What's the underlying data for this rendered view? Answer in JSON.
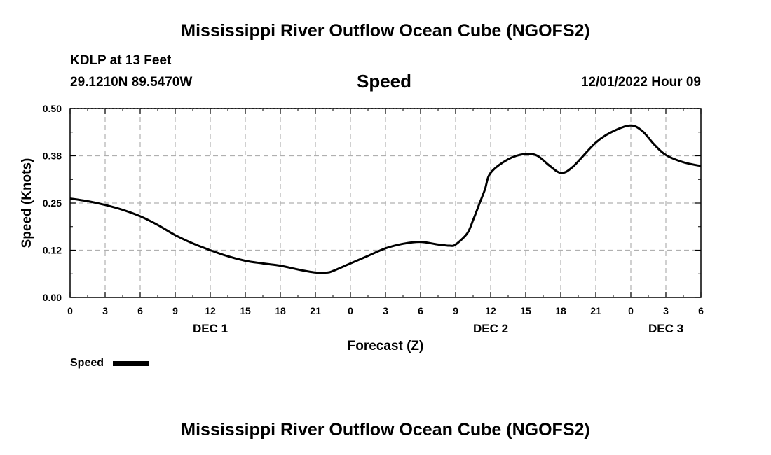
{
  "page": {
    "title_top": "Mississippi River Outflow Ocean Cube (NGOFS2)",
    "station": "KDLP at 13 Feet",
    "coords": "29.1210N  89.5470W",
    "variable": "Speed",
    "datetime": "12/01/2022 Hour 09",
    "title_bottom": "Mississippi River Outflow Ocean Cube (NGOFS2)",
    "legend_label": "Speed"
  },
  "colors": {
    "line": "#000000",
    "grid": "#b0b0b0",
    "background": "#ffffff"
  },
  "chart_data": {
    "type": "line",
    "title": "Speed",
    "xlabel": "Forecast (Z)",
    "ylabel": "Speed (Knots)",
    "xlim": [
      0,
      54
    ],
    "ylim": [
      0,
      0.5
    ],
    "yticks": [
      {
        "value": 0.0,
        "label": "0.00"
      },
      {
        "value": 0.125,
        "label": "0.12"
      },
      {
        "value": 0.25,
        "label": "0.25"
      },
      {
        "value": 0.375,
        "label": "0.38"
      },
      {
        "value": 0.5,
        "label": "0.50"
      }
    ],
    "xticks": [
      {
        "value": 0,
        "label": "0"
      },
      {
        "value": 3,
        "label": "3"
      },
      {
        "value": 6,
        "label": "6"
      },
      {
        "value": 9,
        "label": "9"
      },
      {
        "value": 12,
        "label": "12"
      },
      {
        "value": 15,
        "label": "15"
      },
      {
        "value": 18,
        "label": "18"
      },
      {
        "value": 21,
        "label": "21"
      },
      {
        "value": 24,
        "label": "0"
      },
      {
        "value": 27,
        "label": "3"
      },
      {
        "value": 30,
        "label": "6"
      },
      {
        "value": 33,
        "label": "9"
      },
      {
        "value": 36,
        "label": "12"
      },
      {
        "value": 39,
        "label": "15"
      },
      {
        "value": 42,
        "label": "18"
      },
      {
        "value": 45,
        "label": "21"
      },
      {
        "value": 48,
        "label": "0"
      },
      {
        "value": 51,
        "label": "3"
      },
      {
        "value": 54,
        "label": "6"
      }
    ],
    "day_labels": [
      {
        "value": 12,
        "label": "DEC 1"
      },
      {
        "value": 36,
        "label": "DEC 2"
      },
      {
        "value": 51,
        "label": "DEC 3"
      }
    ],
    "series": [
      {
        "name": "Speed",
        "x": [
          0,
          1.5,
          3,
          4.5,
          6,
          7.5,
          9,
          10.5,
          12,
          13.5,
          15,
          16.5,
          18,
          19.5,
          21,
          22,
          22.5,
          24,
          25.5,
          27,
          28.5,
          30,
          31.5,
          32.5,
          33,
          34,
          34.5,
          35,
          35.5,
          36,
          37.5,
          39,
          40,
          41,
          42,
          43,
          45,
          46.5,
          48,
          49,
          50,
          51,
          52.5,
          54
        ],
        "y": [
          0.262,
          0.255,
          0.245,
          0.232,
          0.215,
          0.192,
          0.165,
          0.143,
          0.125,
          0.109,
          0.097,
          0.09,
          0.084,
          0.074,
          0.066,
          0.066,
          0.07,
          0.09,
          0.11,
          0.13,
          0.142,
          0.147,
          0.14,
          0.137,
          0.14,
          0.17,
          0.205,
          0.245,
          0.285,
          0.33,
          0.366,
          0.38,
          0.375,
          0.35,
          0.33,
          0.345,
          0.41,
          0.44,
          0.455,
          0.44,
          0.405,
          0.377,
          0.358,
          0.348
        ]
      }
    ]
  }
}
